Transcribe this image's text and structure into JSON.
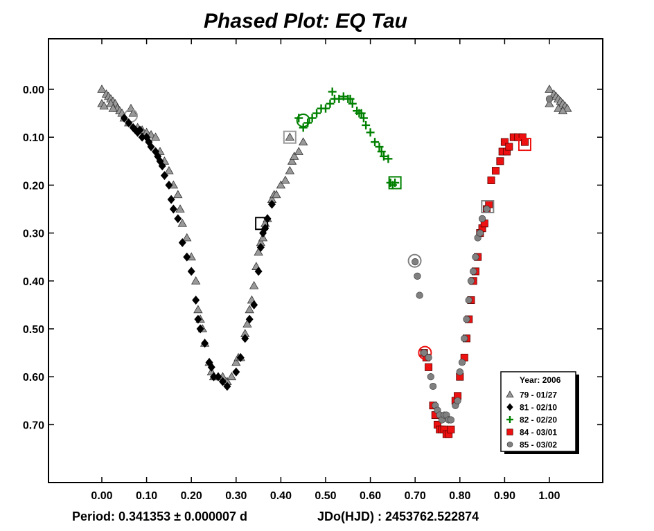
{
  "chart_data": {
    "type": "scatter",
    "title": "Phased Plot: EQ Tau",
    "xlim": [
      -0.12,
      1.12
    ],
    "ylim": [
      0.82,
      -0.1
    ],
    "y_inverted": true,
    "x_ticks": [
      "0.00",
      "0.10",
      "0.20",
      "0.30",
      "0.40",
      "0.50",
      "0.60",
      "0.70",
      "0.80",
      "0.90",
      "1.00"
    ],
    "y_ticks": [
      "0.00",
      "0.10",
      "0.20",
      "0.30",
      "0.40",
      "0.50",
      "0.60",
      "0.70"
    ],
    "grid": false,
    "legend": {
      "title": "Year: 2006",
      "position": "bottom-right"
    },
    "footer": {
      "period": "Period: 0.341353 ± 0.000007 d",
      "epoch": "JDo(HJD) : 2453762.522874"
    },
    "series": [
      {
        "name": "79 - 01/27",
        "marker": "triangle",
        "color": "#999999",
        "points": [
          [
            0.0,
            0.0
          ],
          [
            0.01,
            0.01
          ],
          [
            0.015,
            0.015
          ],
          [
            0.02,
            0.02
          ],
          [
            0.025,
            0.025
          ],
          [
            0.03,
            0.03
          ],
          [
            0.035,
            0.04
          ],
          [
            0.04,
            0.045
          ],
          [
            0.045,
            0.05
          ],
          [
            0.0,
            0.03
          ],
          [
            0.005,
            0.035
          ],
          [
            0.02,
            0.03
          ],
          [
            0.025,
            0.04
          ],
          [
            0.05,
            0.06
          ],
          [
            0.06,
            0.07
          ],
          [
            0.065,
            0.04
          ],
          [
            0.07,
            0.05
          ],
          [
            0.08,
            0.08
          ],
          [
            0.09,
            0.085
          ],
          [
            0.1,
            0.09
          ],
          [
            0.11,
            0.095
          ],
          [
            0.12,
            0.1
          ],
          [
            0.13,
            0.13
          ],
          [
            0.14,
            0.15
          ],
          [
            0.15,
            0.17
          ],
          [
            0.16,
            0.2
          ],
          [
            0.17,
            0.22
          ],
          [
            0.175,
            0.25
          ],
          [
            0.18,
            0.28
          ],
          [
            0.19,
            0.31
          ],
          [
            0.2,
            0.35
          ],
          [
            0.21,
            0.4
          ],
          [
            0.215,
            0.46
          ],
          [
            0.22,
            0.48
          ],
          [
            0.225,
            0.5
          ],
          [
            0.23,
            0.53
          ],
          [
            0.24,
            0.57
          ],
          [
            0.245,
            0.59
          ],
          [
            0.25,
            0.6
          ],
          [
            0.26,
            0.6
          ],
          [
            0.27,
            0.6
          ],
          [
            0.28,
            0.61
          ],
          [
            0.29,
            0.6
          ],
          [
            0.3,
            0.57
          ],
          [
            0.305,
            0.56
          ],
          [
            0.31,
            0.56
          ],
          [
            0.32,
            0.51
          ],
          [
            0.325,
            0.49
          ],
          [
            0.33,
            0.46
          ],
          [
            0.335,
            0.44
          ],
          [
            0.34,
            0.41
          ],
          [
            0.345,
            0.37
          ],
          [
            0.35,
            0.34
          ],
          [
            0.355,
            0.32
          ],
          [
            0.36,
            0.31
          ],
          [
            0.365,
            0.28
          ],
          [
            0.37,
            0.27
          ],
          [
            0.38,
            0.23
          ],
          [
            0.385,
            0.22
          ],
          [
            0.39,
            0.22
          ],
          [
            0.4,
            0.2
          ],
          [
            0.41,
            0.19
          ],
          [
            0.42,
            0.17
          ],
          [
            0.425,
            0.15
          ],
          [
            0.43,
            0.14
          ],
          [
            0.44,
            0.13
          ],
          [
            0.45,
            0.11
          ],
          [
            0.42,
            0.1
          ],
          [
            1.0,
            0.0
          ],
          [
            1.01,
            0.01
          ],
          [
            1.015,
            0.015
          ],
          [
            1.02,
            0.02
          ],
          [
            1.025,
            0.025
          ],
          [
            1.03,
            0.03
          ],
          [
            1.035,
            0.035
          ],
          [
            1.04,
            0.04
          ],
          [
            1.0,
            0.03
          ],
          [
            1.02,
            0.04
          ],
          [
            1.03,
            0.045
          ]
        ],
        "boxed": [
          0.42,
          0.1
        ],
        "circled": [
          0.065,
          0.055
        ]
      },
      {
        "name": "81 - 02/10",
        "marker": "diamond",
        "color": "#000000",
        "points": [
          [
            0.05,
            0.06
          ],
          [
            0.06,
            0.07
          ],
          [
            0.07,
            0.08
          ],
          [
            0.075,
            0.085
          ],
          [
            0.08,
            0.09
          ],
          [
            0.085,
            0.085
          ],
          [
            0.09,
            0.1
          ],
          [
            0.1,
            0.1
          ],
          [
            0.105,
            0.11
          ],
          [
            0.11,
            0.12
          ],
          [
            0.12,
            0.13
          ],
          [
            0.125,
            0.14
          ],
          [
            0.13,
            0.15
          ],
          [
            0.135,
            0.16
          ],
          [
            0.14,
            0.18
          ],
          [
            0.15,
            0.2
          ],
          [
            0.155,
            0.23
          ],
          [
            0.16,
            0.25
          ],
          [
            0.17,
            0.27
          ],
          [
            0.18,
            0.32
          ],
          [
            0.19,
            0.35
          ],
          [
            0.2,
            0.38
          ],
          [
            0.21,
            0.44
          ],
          [
            0.215,
            0.48
          ],
          [
            0.22,
            0.5
          ],
          [
            0.23,
            0.53
          ],
          [
            0.24,
            0.57
          ],
          [
            0.245,
            0.58
          ],
          [
            0.25,
            0.6
          ],
          [
            0.26,
            0.6
          ],
          [
            0.27,
            0.61
          ],
          [
            0.28,
            0.62
          ],
          [
            0.3,
            0.59
          ],
          [
            0.31,
            0.56
          ],
          [
            0.32,
            0.52
          ],
          [
            0.33,
            0.48
          ],
          [
            0.34,
            0.45
          ],
          [
            0.35,
            0.38
          ],
          [
            0.355,
            0.33
          ],
          [
            0.36,
            0.3
          ],
          [
            0.365,
            0.29
          ],
          [
            0.37,
            0.27
          ],
          [
            0.38,
            0.24
          ]
        ],
        "boxed": [
          0.357,
          0.28
        ]
      },
      {
        "name": "82 - 02/20",
        "marker": "plus",
        "color": "#008000",
        "points": [
          [
            0.44,
            0.06
          ],
          [
            0.45,
            0.08
          ],
          [
            0.46,
            0.07
          ],
          [
            0.47,
            0.06
          ],
          [
            0.48,
            0.05
          ],
          [
            0.49,
            0.04
          ],
          [
            0.5,
            0.04
          ],
          [
            0.51,
            0.03
          ],
          [
            0.515,
            0.005
          ],
          [
            0.52,
            0.02
          ],
          [
            0.53,
            0.02
          ],
          [
            0.54,
            0.015
          ],
          [
            0.55,
            0.02
          ],
          [
            0.555,
            0.02
          ],
          [
            0.56,
            0.03
          ],
          [
            0.57,
            0.045
          ],
          [
            0.575,
            0.05
          ],
          [
            0.58,
            0.05
          ],
          [
            0.585,
            0.06
          ],
          [
            0.59,
            0.075
          ],
          [
            0.6,
            0.09
          ],
          [
            0.61,
            0.11
          ],
          [
            0.62,
            0.12
          ],
          [
            0.625,
            0.13
          ],
          [
            0.63,
            0.14
          ],
          [
            0.64,
            0.145
          ],
          [
            0.645,
            0.195
          ],
          [
            0.65,
            0.2
          ],
          [
            0.655,
            0.195
          ]
        ],
        "boxed": [
          0.655,
          0.195
        ],
        "circled": [
          0.45,
          0.065
        ]
      },
      {
        "name": "84 - 03/01",
        "marker": "square",
        "color": "#ee1111",
        "points": [
          [
            0.72,
            0.55
          ],
          [
            0.725,
            0.56
          ],
          [
            0.73,
            0.58
          ],
          [
            0.74,
            0.66
          ],
          [
            0.745,
            0.68
          ],
          [
            0.75,
            0.7
          ],
          [
            0.755,
            0.71
          ],
          [
            0.76,
            0.71
          ],
          [
            0.765,
            0.71
          ],
          [
            0.77,
            0.72
          ],
          [
            0.775,
            0.72
          ],
          [
            0.78,
            0.71
          ],
          [
            0.79,
            0.65
          ],
          [
            0.795,
            0.64
          ],
          [
            0.8,
            0.6
          ],
          [
            0.81,
            0.56
          ],
          [
            0.815,
            0.52
          ],
          [
            0.82,
            0.48
          ],
          [
            0.825,
            0.44
          ],
          [
            0.83,
            0.4
          ],
          [
            0.835,
            0.38
          ],
          [
            0.84,
            0.35
          ],
          [
            0.845,
            0.3
          ],
          [
            0.85,
            0.29
          ],
          [
            0.855,
            0.28
          ],
          [
            0.86,
            0.25
          ],
          [
            0.865,
            0.24
          ],
          [
            0.87,
            0.19
          ],
          [
            0.88,
            0.17
          ],
          [
            0.89,
            0.15
          ],
          [
            0.895,
            0.13
          ],
          [
            0.9,
            0.11
          ],
          [
            0.905,
            0.13
          ],
          [
            0.91,
            0.12
          ],
          [
            0.92,
            0.1
          ],
          [
            0.93,
            0.1
          ],
          [
            0.94,
            0.1
          ],
          [
            0.945,
            0.11
          ]
        ],
        "boxed": [
          0.945,
          0.115
        ],
        "circled": [
          0.722,
          0.55
        ]
      },
      {
        "name": "85 - 03/02",
        "marker": "circle",
        "color": "#808080",
        "points": [
          [
            0.7,
            0.36
          ],
          [
            0.705,
            0.39
          ],
          [
            0.71,
            0.43
          ],
          [
            0.72,
            0.55
          ],
          [
            0.73,
            0.56
          ],
          [
            0.735,
            0.6
          ],
          [
            0.74,
            0.62
          ],
          [
            0.745,
            0.66
          ],
          [
            0.75,
            0.67
          ],
          [
            0.755,
            0.68
          ],
          [
            0.76,
            0.69
          ],
          [
            0.765,
            0.68
          ],
          [
            0.77,
            0.68
          ],
          [
            0.775,
            0.69
          ],
          [
            0.78,
            0.69
          ],
          [
            0.79,
            0.66
          ],
          [
            0.795,
            0.65
          ],
          [
            0.8,
            0.59
          ],
          [
            0.805,
            0.57
          ],
          [
            0.81,
            0.52
          ],
          [
            0.815,
            0.48
          ],
          [
            0.82,
            0.44
          ],
          [
            0.825,
            0.4
          ],
          [
            0.83,
            0.38
          ],
          [
            0.835,
            0.35
          ],
          [
            0.84,
            0.31
          ],
          [
            0.845,
            0.3
          ],
          [
            0.85,
            0.27
          ],
          [
            0.86,
            0.25
          ],
          [
            1.0,
            0.02
          ]
        ],
        "boxed": [
          0.862,
          0.245
        ],
        "circled": [
          0.699,
          0.358
        ]
      }
    ]
  }
}
